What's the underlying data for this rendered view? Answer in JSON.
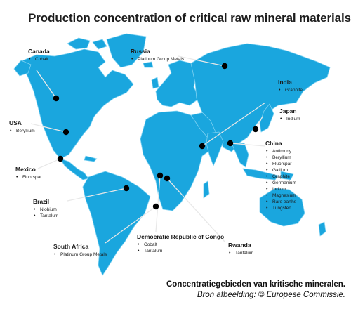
{
  "title": "Production concentration of critical raw mineral materials",
  "countries": [
    {
      "id": "canada",
      "name": "Canada",
      "minerals": [
        "Cobalt"
      ]
    },
    {
      "id": "russia",
      "name": "Russia",
      "minerals": [
        "Platinum Group Metals"
      ]
    },
    {
      "id": "india",
      "name": "India",
      "minerals": [
        "Graphite"
      ]
    },
    {
      "id": "usa",
      "name": "USA",
      "minerals": [
        "Beryllium"
      ]
    },
    {
      "id": "japan",
      "name": "Japan",
      "minerals": [
        "Indium"
      ]
    },
    {
      "id": "mexico",
      "name": "Mexico",
      "minerals": [
        "Fluorspar"
      ]
    },
    {
      "id": "china",
      "name": "China",
      "minerals": [
        "Antimony",
        "Beryllium",
        "Fluorspar",
        "Gallium",
        "Graphite",
        "Germanium",
        "Indium",
        "Magnesium",
        "Rare earths",
        "Tungsten"
      ]
    },
    {
      "id": "brazil",
      "name": "Brazil",
      "minerals": [
        "Niobium",
        "Tantalum"
      ]
    },
    {
      "id": "drc",
      "name": "Democratic Republic of Congo",
      "minerals": [
        "Cobalt",
        "Tantalum"
      ]
    },
    {
      "id": "south_africa",
      "name": "South Africa",
      "minerals": [
        "Platinum Group Metals"
      ]
    },
    {
      "id": "rwanda",
      "name": "Rwanda",
      "minerals": [
        "Tantalum"
      ]
    }
  ],
  "caption": {
    "line1": "Concentratiegebieden van kritische mineralen.",
    "line2": "Bron afbeelding: © Europese Commissie."
  },
  "colors": {
    "land": "#1aa6de",
    "land_border": "#7fd2f2",
    "marker": "#000000",
    "leader_line": "#e8e8e8"
  }
}
